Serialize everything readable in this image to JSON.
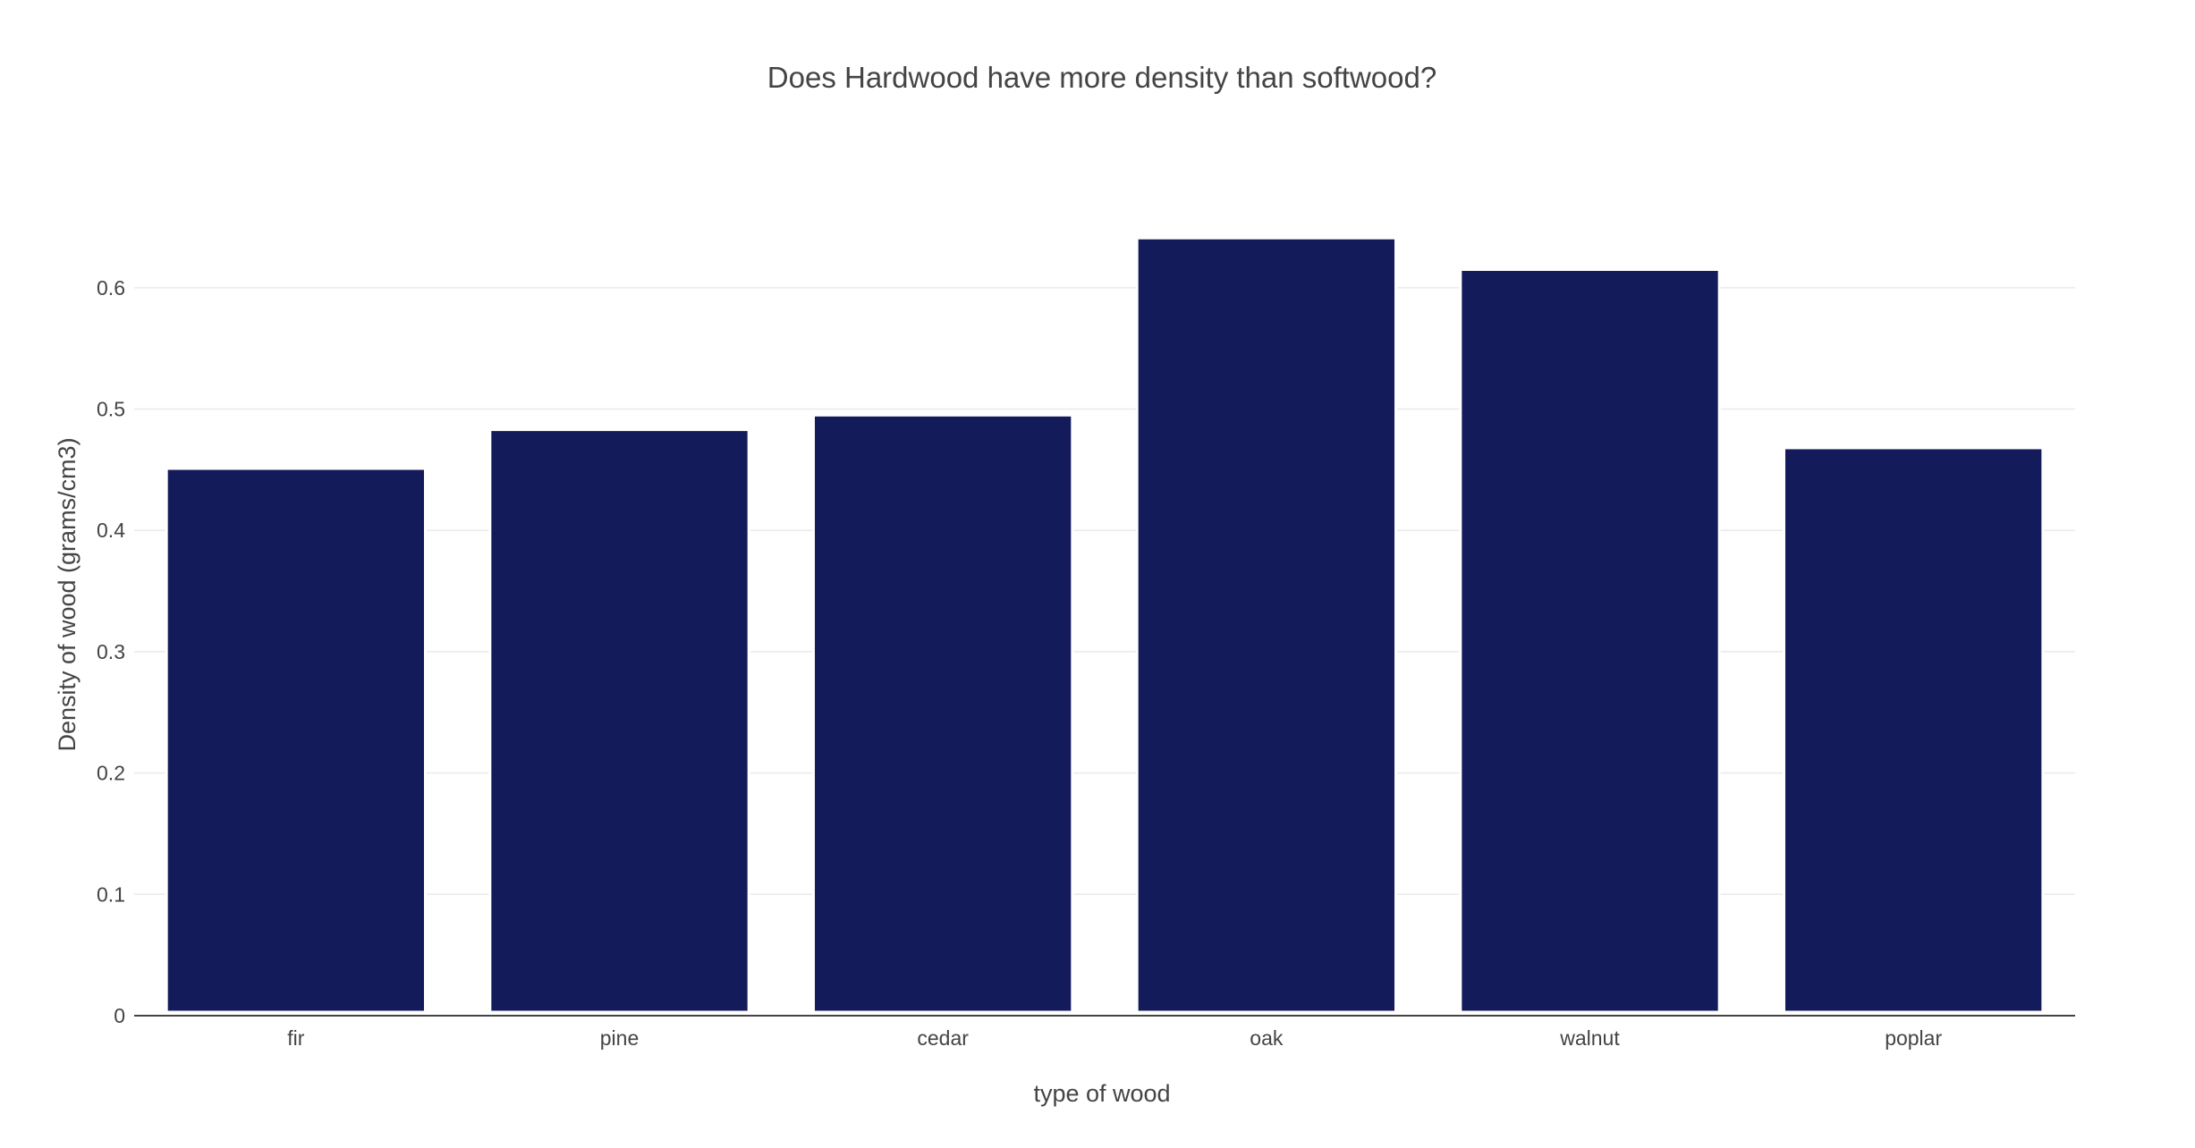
{
  "chart_data": {
    "type": "bar",
    "title": "Does Hardwood have more density than softwood?",
    "xlabel": "type of wood",
    "ylabel": "Density of wood (grams/cm3)",
    "categories": [
      "fir",
      "pine",
      "cedar",
      "oak",
      "walnut",
      "poplar"
    ],
    "values": [
      0.451,
      0.483,
      0.495,
      0.641,
      0.615,
      0.468
    ],
    "ylim": [
      0,
      0.65
    ],
    "yticks": [
      0,
      0.1,
      0.2,
      0.3,
      0.4,
      0.5,
      0.6
    ],
    "ytick_labels": [
      "0",
      "0.1",
      "0.2",
      "0.3",
      "0.4",
      "0.5",
      "0.6"
    ],
    "grid": true,
    "bar_color": "#141b5b",
    "bar_outline_color": "#ffffff"
  }
}
